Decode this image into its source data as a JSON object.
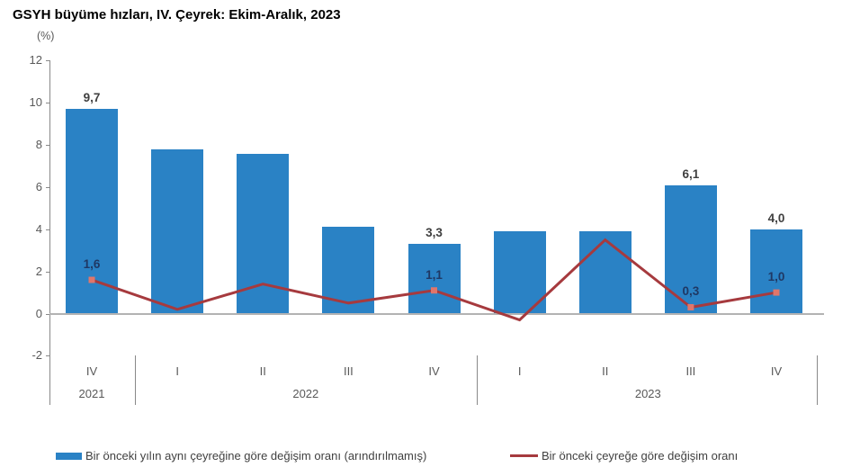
{
  "page": {
    "title": "GSYH büyüme hızları, IV. Çeyrek: Ekim-Aralık, 2023",
    "unit_label": "(%)"
  },
  "chart_data": {
    "type": "bar",
    "title": "GSYH büyüme hızları, IV. Çeyrek: Ekim-Aralık, 2023",
    "xlabel": "",
    "ylabel": "(%)",
    "categories": [
      "IV",
      "I",
      "II",
      "III",
      "IV",
      "I",
      "II",
      "III",
      "IV"
    ],
    "year_groups": [
      {
        "label": "2021",
        "count": 1
      },
      {
        "label": "2022",
        "count": 4
      },
      {
        "label": "2023",
        "count": 4
      }
    ],
    "series": [
      {
        "name": "Bir önceki yılın aynı çeyreğine göre değişim oranı (arındırılmamış)",
        "type": "bar",
        "color": "#2A82C5",
        "values": [
          9.7,
          7.8,
          7.6,
          4.1,
          3.3,
          3.9,
          3.9,
          6.1,
          4.0
        ],
        "point_labels": [
          "9,7",
          null,
          null,
          null,
          "3,3",
          null,
          null,
          "6,1",
          "4,0"
        ]
      },
      {
        "name": "Bir önceki çeyreğe göre değişim oranı",
        "type": "line",
        "color": "#A63A3E",
        "marker_color": "#E0766B",
        "values": [
          1.6,
          0.2,
          1.4,
          0.5,
          1.1,
          -0.3,
          3.5,
          0.3,
          1.0
        ],
        "point_labels": [
          "1,6",
          null,
          null,
          null,
          "1,1",
          null,
          null,
          "0,3",
          "1,0"
        ]
      }
    ],
    "ylim": [
      -2,
      12
    ],
    "yticks": [
      12,
      10,
      8,
      6,
      4,
      2,
      0,
      -2
    ],
    "grid": false,
    "legend_position": "bottom"
  },
  "colors": {
    "bar": "#2A82C5",
    "line": "#A63A3E",
    "marker": "#E0766B",
    "bar_label": "#3F3F3F",
    "line_label": "#1F3864",
    "axis_text": "#595959",
    "axis_line": "#898989",
    "zero_line": "#B3B3B3",
    "legend_text": "#404040"
  }
}
